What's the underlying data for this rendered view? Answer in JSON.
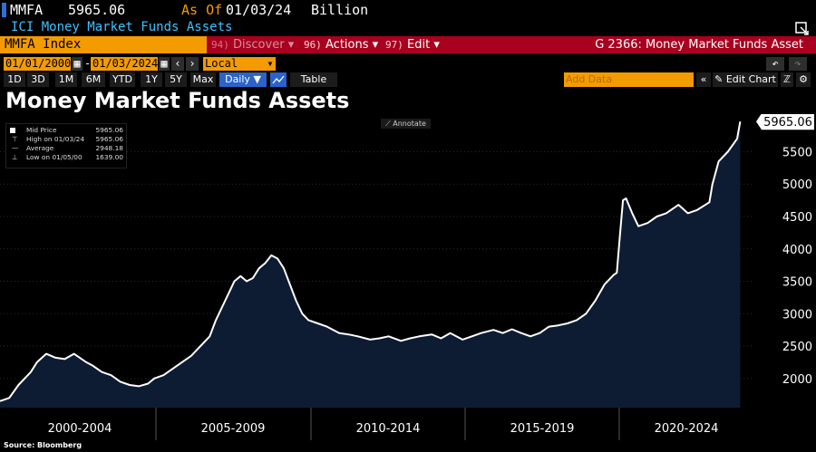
{
  "header": {
    "ticker": "MMFA",
    "value": "5965.06",
    "as_of_label": "As Of",
    "as_of_date": "01/03/24",
    "unit": "Billion",
    "subtitle": "ICI Money Market Funds Assets"
  },
  "toolbar": {
    "index": "MMFA Index",
    "discover_num": "94)",
    "discover": "Discover",
    "actions_num": "96)",
    "actions": "Actions",
    "edit_num": "97)",
    "edit": "Edit",
    "page_title": "G 2366: Money Market Funds Asset"
  },
  "controls": {
    "start_date": "01/01/2000",
    "end_date": "01/03/2024",
    "currency": "Local CCY",
    "add_data_placeholder": "Add Data",
    "edit_chart": "Edit Chart"
  },
  "periods": [
    {
      "label": "1D"
    },
    {
      "label": "3D"
    },
    {
      "label": "1M"
    },
    {
      "label": "6M"
    },
    {
      "label": "YTD"
    },
    {
      "label": "1Y"
    },
    {
      "label": "5Y"
    },
    {
      "label": "Max"
    }
  ],
  "frequency": "Daily",
  "table_tab": "Table",
  "annotate": "Annotate",
  "legend": {
    "mid_price_label": "Mid Price",
    "mid_price": "5965.06",
    "high_label": "High on 01/03/24",
    "high": "5965.06",
    "avg_label": "Average",
    "avg": "2948.18",
    "low_label": "Low on 01/05/00",
    "low": "1639.00"
  },
  "source": "Source: Bloomberg",
  "colors": {
    "orange": "#f39b00",
    "red": "#a8001e",
    "blue": "#2b63c9",
    "area": "#0d1c33"
  },
  "chart_data": {
    "type": "area",
    "title": "Money Market Funds Assets",
    "x_tick_labels": [
      "2000-2004",
      "2005-2009",
      "2010-2014",
      "2015-2019",
      "2020-2024"
    ],
    "y_ticks": [
      2000,
      2500,
      3000,
      3500,
      4000,
      4500,
      5000,
      5500
    ],
    "ylim": [
      1550,
      6080
    ],
    "xlim": [
      2000.0,
      2024.4
    ],
    "last_value_label": "5965.06",
    "series": [
      {
        "x": [
          2000.0,
          2000.3,
          2000.6,
          2001.0,
          2001.2,
          2001.5,
          2001.8,
          2002.1,
          2002.4,
          2002.8,
          2003.0,
          2003.3,
          2003.6,
          2003.9,
          2004.2,
          2004.5,
          2004.8,
          2005.0,
          2005.3,
          2005.6,
          2005.9,
          2006.2,
          2006.5,
          2006.8,
          2007.0,
          2007.3,
          2007.6,
          2007.8,
          2008.0,
          2008.2,
          2008.4,
          2008.6,
          2008.8,
          2009.0,
          2009.2,
          2009.4,
          2009.6,
          2009.8,
          2010.0,
          2010.3,
          2010.6,
          2011.0,
          2011.3,
          2011.6,
          2012.0,
          2012.3,
          2012.6,
          2013.0,
          2013.3,
          2013.6,
          2014.0,
          2014.3,
          2014.6,
          2015.0,
          2015.3,
          2015.6,
          2016.0,
          2016.3,
          2016.6,
          2016.9,
          2017.2,
          2017.5,
          2017.8,
          2018.1,
          2018.4,
          2018.7,
          2019.0,
          2019.3,
          2019.6,
          2019.9,
          2020.0,
          2020.1,
          2020.2,
          2020.3,
          2020.5,
          2020.7,
          2021.0,
          2021.3,
          2021.6,
          2022.0,
          2022.3,
          2022.6,
          2023.0,
          2023.1,
          2023.3,
          2023.6,
          2023.9,
          2024.0
        ],
        "y": [
          1650,
          1700,
          1900,
          2100,
          2250,
          2380,
          2320,
          2300,
          2380,
          2250,
          2200,
          2100,
          2050,
          1950,
          1900,
          1880,
          1920,
          2000,
          2050,
          2150,
          2250,
          2350,
          2500,
          2650,
          2900,
          3200,
          3500,
          3580,
          3500,
          3550,
          3700,
          3780,
          3900,
          3850,
          3700,
          3450,
          3200,
          3000,
          2900,
          2850,
          2800,
          2700,
          2680,
          2650,
          2600,
          2620,
          2650,
          2580,
          2620,
          2650,
          2680,
          2620,
          2700,
          2600,
          2650,
          2700,
          2750,
          2700,
          2760,
          2700,
          2650,
          2700,
          2800,
          2820,
          2850,
          2900,
          3000,
          3200,
          3450,
          3600,
          3630,
          4200,
          4750,
          4780,
          4550,
          4350,
          4400,
          4500,
          4550,
          4680,
          4550,
          4600,
          4720,
          5000,
          5350,
          5500,
          5700,
          5965.06
        ]
      }
    ]
  }
}
